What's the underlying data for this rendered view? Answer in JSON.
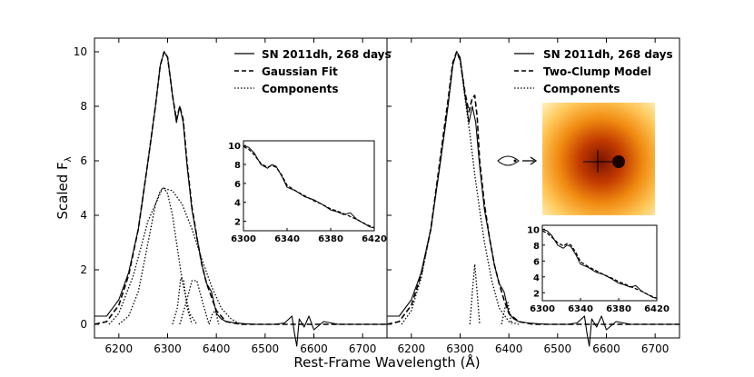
{
  "chart_data": [
    {
      "type": "line",
      "panel": "left",
      "xlim": [
        6150,
        6750
      ],
      "ylim": [
        -0.5,
        10.5
      ],
      "xticks": [
        "6200",
        "6300",
        "6400",
        "6500",
        "6600",
        "6700"
      ],
      "yticks": [
        "0",
        "2",
        "4",
        "6",
        "8",
        "10"
      ],
      "ylabel_main": "Scaled F",
      "ylabel_sub": "λ",
      "legend_position": "top-right",
      "legend": [
        {
          "label": "SN 2011dh, 268 days",
          "style": "solid"
        },
        {
          "label": "Gaussian Fit",
          "style": "dashed"
        },
        {
          "label": "Components",
          "style": "dotted"
        }
      ],
      "series": [
        {
          "name": "SN 2011dh, 268 days",
          "style": "solid",
          "x": [
            6150,
            6175,
            6200,
            6220,
            6240,
            6260,
            6275,
            6285,
            6293,
            6300,
            6310,
            6318,
            6325,
            6332,
            6340,
            6350,
            6360,
            6370,
            6380,
            6390,
            6395,
            6400,
            6410,
            6420,
            6440,
            6460,
            6480,
            6500,
            6520,
            6540,
            6555,
            6560,
            6565,
            6570,
            6580,
            6590,
            6600,
            6620,
            6650,
            6700,
            6750
          ],
          "y": [
            0.3,
            0.3,
            0.9,
            1.9,
            3.5,
            6.0,
            8.0,
            9.5,
            10.0,
            9.8,
            8.4,
            7.4,
            8.0,
            7.4,
            5.8,
            4.2,
            3.2,
            2.2,
            1.5,
            1.2,
            0.8,
            0.4,
            0.2,
            0.1,
            0.05,
            0.02,
            0.0,
            0.0,
            0.0,
            0.05,
            0.3,
            -0.3,
            -0.8,
            0.2,
            -0.1,
            0.3,
            -0.2,
            0.1,
            0.0,
            0.0,
            0.0
          ]
        },
        {
          "name": "Gaussian Fit",
          "style": "dashed",
          "x": [
            6150,
            6175,
            6200,
            6220,
            6240,
            6260,
            6275,
            6285,
            6293,
            6300,
            6310,
            6318,
            6325,
            6332,
            6340,
            6350,
            6360,
            6370,
            6380,
            6390,
            6400,
            6420,
            6450,
            6500,
            6750
          ],
          "y": [
            0.0,
            0.1,
            0.7,
            1.8,
            3.5,
            6.0,
            8.0,
            9.5,
            10.0,
            9.8,
            8.4,
            7.5,
            8.0,
            7.5,
            5.9,
            4.3,
            3.2,
            2.2,
            1.5,
            1.0,
            0.5,
            0.1,
            0.0,
            0.0,
            0.0
          ]
        },
        {
          "name": "Component 1",
          "style": "dotted",
          "x": [
            6200,
            6220,
            6240,
            6260,
            6275,
            6285,
            6292,
            6300,
            6310,
            6320,
            6330,
            6345,
            6360
          ],
          "y": [
            0.0,
            0.3,
            1.2,
            3.0,
            4.4,
            4.9,
            5.0,
            4.8,
            4.0,
            2.8,
            1.6,
            0.4,
            0.0
          ]
        },
        {
          "name": "Component 2",
          "style": "dotted",
          "x": [
            6180,
            6200,
            6230,
            6260,
            6290,
            6310,
            6330,
            6350,
            6370,
            6390,
            6410,
            6430,
            6450
          ],
          "y": [
            0.0,
            0.4,
            1.8,
            3.8,
            5.0,
            4.9,
            4.4,
            3.5,
            2.4,
            1.4,
            0.6,
            0.2,
            0.0
          ]
        },
        {
          "name": "Component 3",
          "style": "dotted",
          "x": [
            6310,
            6320,
            6327,
            6333,
            6340,
            6350
          ],
          "y": [
            0.0,
            0.6,
            1.7,
            1.6,
            0.6,
            0.0
          ]
        },
        {
          "name": "Component 4",
          "style": "dotted",
          "x": [
            6325,
            6338,
            6350,
            6360,
            6372,
            6385
          ],
          "y": [
            0.0,
            0.8,
            1.6,
            1.6,
            0.8,
            0.0
          ]
        },
        {
          "name": "Component 5",
          "style": "dotted",
          "x": [
            6385,
            6392,
            6398,
            6405
          ],
          "y": [
            0.0,
            0.4,
            0.5,
            0.0
          ]
        }
      ],
      "inset": {
        "xlim": [
          6300,
          6420
        ],
        "ylim": [
          1,
          10.5
        ],
        "xticks": [
          "6300",
          "6340",
          "6380",
          "6420"
        ],
        "yticks": [
          "2",
          "4",
          "6",
          "8",
          "10"
        ],
        "series": [
          {
            "style": "solid",
            "x": [
              6300,
              6305,
              6310,
              6316,
              6322,
              6326,
              6330,
              6335,
              6340,
              6348,
              6356,
              6364,
              6372,
              6380,
              6386,
              6392,
              6398,
              6404,
              6410,
              6416,
              6420
            ],
            "y": [
              10.0,
              9.8,
              9.2,
              8.0,
              7.6,
              8.0,
              7.8,
              6.8,
              5.6,
              5.2,
              4.6,
              4.3,
              3.8,
              3.2,
              3.0,
              2.7,
              2.9,
              2.2,
              1.8,
              1.4,
              1.3
            ]
          },
          {
            "style": "dashed",
            "x": [
              6300,
              6305,
              6310,
              6316,
              6322,
              6326,
              6330,
              6335,
              6340,
              6348,
              6356,
              6364,
              6372,
              6380,
              6388,
              6396,
              6404,
              6412,
              6420
            ],
            "y": [
              9.9,
              9.6,
              9.0,
              8.1,
              7.7,
              7.9,
              7.7,
              6.9,
              5.8,
              5.2,
              4.7,
              4.2,
              3.8,
              3.3,
              3.0,
              2.6,
              2.2,
              1.7,
              1.3
            ]
          }
        ]
      }
    },
    {
      "type": "line",
      "panel": "right",
      "xlim": [
        6150,
        6750
      ],
      "ylim": [
        -0.5,
        10.5
      ],
      "xticks": [
        "6200",
        "6300",
        "6400",
        "6500",
        "6600",
        "6700"
      ],
      "legend_position": "top-right",
      "legend": [
        {
          "label": "SN 2011dh, 268 days",
          "style": "solid"
        },
        {
          "label": "Two-Clump Model",
          "style": "dashed"
        },
        {
          "label": "Components",
          "style": "dotted"
        }
      ],
      "series": [
        {
          "name": "SN 2011dh, 268 days",
          "style": "solid",
          "x": [
            6150,
            6175,
            6200,
            6220,
            6240,
            6260,
            6275,
            6285,
            6293,
            6300,
            6310,
            6318,
            6325,
            6332,
            6340,
            6350,
            6360,
            6370,
            6380,
            6390,
            6395,
            6400,
            6410,
            6420,
            6440,
            6460,
            6480,
            6500,
            6520,
            6540,
            6555,
            6560,
            6565,
            6570,
            6580,
            6590,
            6600,
            6620,
            6650,
            6700,
            6750
          ],
          "y": [
            0.3,
            0.3,
            0.9,
            1.9,
            3.5,
            6.0,
            8.0,
            9.5,
            10.0,
            9.8,
            8.4,
            7.4,
            8.0,
            7.4,
            5.8,
            4.2,
            3.2,
            2.2,
            1.5,
            1.2,
            0.8,
            0.4,
            0.2,
            0.1,
            0.05,
            0.02,
            0.0,
            0.0,
            0.0,
            0.05,
            0.3,
            -0.3,
            -0.8,
            0.2,
            -0.1,
            0.3,
            -0.2,
            0.1,
            0.0,
            0.0,
            0.0
          ]
        },
        {
          "name": "Two-Clump Model",
          "style": "dashed",
          "x": [
            6150,
            6175,
            6200,
            6220,
            6240,
            6260,
            6275,
            6285,
            6293,
            6300,
            6310,
            6318,
            6325,
            6330,
            6335,
            6340,
            6350,
            6360,
            6370,
            6380,
            6390,
            6400,
            6420,
            6450,
            6500,
            6750
          ],
          "y": [
            0.0,
            0.1,
            0.7,
            1.8,
            3.5,
            6.2,
            8.2,
            9.6,
            10.0,
            9.7,
            8.5,
            7.8,
            8.3,
            8.4,
            7.6,
            6.0,
            4.4,
            3.2,
            2.2,
            1.5,
            0.9,
            0.4,
            0.1,
            0.0,
            0.0,
            0.0
          ]
        },
        {
          "name": "Component Main",
          "style": "dotted",
          "x": [
            6180,
            6200,
            6220,
            6240,
            6260,
            6275,
            6285,
            6293,
            6300,
            6310,
            6320,
            6330,
            6340,
            6350,
            6365,
            6380,
            6400,
            6420
          ],
          "y": [
            0.0,
            0.5,
            1.7,
            3.5,
            6.0,
            8.0,
            9.5,
            10.0,
            9.7,
            8.3,
            7.0,
            5.5,
            4.2,
            3.0,
            1.6,
            0.6,
            0.1,
            0.0
          ]
        },
        {
          "name": "Component Clump",
          "style": "dotted",
          "x": [
            6320,
            6326,
            6330,
            6334,
            6340
          ],
          "y": [
            0.0,
            1.4,
            2.2,
            1.4,
            0.0
          ]
        },
        {
          "name": "Component Small",
          "style": "dotted",
          "x": [
            6385,
            6392,
            6398,
            6405
          ],
          "y": [
            0.0,
            0.6,
            0.8,
            0.0
          ]
        }
      ],
      "inset": {
        "xlim": [
          6300,
          6420
        ],
        "ylim": [
          1,
          10.5
        ],
        "xticks": [
          "6300",
          "6340",
          "6380",
          "6420"
        ],
        "yticks": [
          "2",
          "4",
          "6",
          "8",
          "10"
        ],
        "series": [
          {
            "style": "solid",
            "x": [
              6300,
              6305,
              6310,
              6316,
              6322,
              6326,
              6330,
              6335,
              6340,
              6348,
              6356,
              6364,
              6372,
              6380,
              6386,
              6392,
              6398,
              6404,
              6410,
              6416,
              6420
            ],
            "y": [
              10.0,
              9.8,
              9.2,
              8.0,
              7.6,
              8.0,
              7.8,
              6.8,
              5.6,
              5.2,
              4.6,
              4.3,
              3.8,
              3.2,
              3.0,
              2.7,
              2.9,
              2.2,
              1.8,
              1.4,
              1.3
            ]
          },
          {
            "style": "dashed",
            "x": [
              6300,
              6305,
              6310,
              6316,
              6322,
              6326,
              6330,
              6335,
              6340,
              6348,
              6356,
              6364,
              6372,
              6380,
              6388,
              6396,
              6404,
              6412,
              6420
            ],
            "y": [
              9.8,
              9.5,
              9.0,
              8.3,
              7.9,
              8.2,
              8.0,
              7.1,
              5.9,
              5.3,
              4.8,
              4.3,
              3.9,
              3.4,
              3.0,
              2.6,
              2.2,
              1.7,
              1.3
            ]
          }
        ]
      },
      "model_image": {
        "description_label": "",
        "colors": [
          "#8b1a00",
          "#d65a00",
          "#ffa500",
          "#fff7c4"
        ]
      }
    }
  ],
  "xlabel": "Rest-Frame Wavelength (Å)"
}
